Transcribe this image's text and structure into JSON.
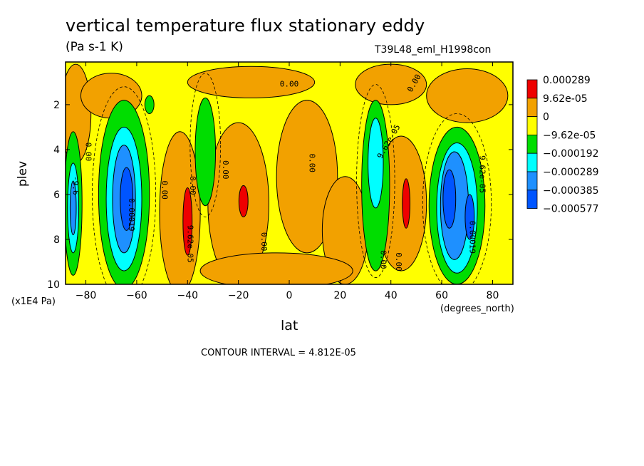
{
  "chart_data": {
    "type": "heatmap",
    "title": "vertical temperature flux stationary eddy",
    "units": "(Pa s-1 K)",
    "run_label": "T39L48_eml_H1998con",
    "xlabel": "lat",
    "x_unit": "(degrees_north)",
    "ylabel": "plev",
    "y_unit": "(x1E4 Pa)",
    "footnote": "CONTOUR INTERVAL = 4.812E-05",
    "xlim": [
      -88,
      88
    ],
    "ylim": [
      10,
      0.1
    ],
    "x_ticks": [
      -80,
      -60,
      -40,
      -20,
      0,
      20,
      40,
      60,
      80
    ],
    "y_ticks": [
      2,
      4,
      6,
      8,
      10
    ],
    "legend": [
      {
        "label": "0.000289",
        "color": "#ee0000"
      },
      {
        "label": "9.62e-05",
        "color": "#f2a100"
      },
      {
        "label": "0",
        "color": "#ffff00"
      },
      {
        "label": "−9.62e-05",
        "color": "#00dd00"
      },
      {
        "label": "−0.000192",
        "color": "#00ffff"
      },
      {
        "label": "−0.000289",
        "color": "#1e90ff"
      },
      {
        "label": "−0.000385",
        "color": "#0055ff"
      },
      {
        "label": "−0.000577",
        "color": ""
      }
    ],
    "contour_labels": [
      {
        "text": "0.00",
        "lat": -80,
        "plev": 4.1,
        "rot": 90
      },
      {
        "text": "0.00",
        "lat": -50,
        "plev": 5.8,
        "rot": 90
      },
      {
        "text": "0.00",
        "lat": -39,
        "plev": 5.6,
        "rot": 90
      },
      {
        "text": "0.00",
        "lat": -26,
        "plev": 4.9,
        "rot": 90
      },
      {
        "text": "0.00",
        "lat": 8,
        "plev": 4.6,
        "rot": 90
      },
      {
        "text": "0.00",
        "lat": -11,
        "plev": 8.1,
        "rot": 90
      },
      {
        "text": "0.00",
        "lat": 0,
        "plev": 1.2,
        "rot": 0
      },
      {
        "text": "0.00",
        "lat": 50,
        "plev": 1.1,
        "rot": -60
      },
      {
        "text": "0.00",
        "lat": 36,
        "plev": 8.9,
        "rot": 90
      },
      {
        "text": "0.00",
        "lat": 42,
        "plev": 9.0,
        "rot": 90
      },
      {
        "text": "9.62e-05",
        "lat": -40,
        "plev": 8.2,
        "rot": 90
      },
      {
        "text": "9.62e-05",
        "lat": 40,
        "plev": 3.7,
        "rot": -60
      },
      {
        "text": "9.62e-05",
        "lat": 75,
        "plev": 5.1,
        "rot": 90
      },
      {
        "text": "0.00019",
        "lat": 71,
        "plev": 7.9,
        "rot": 90
      },
      {
        "text": "0.00019",
        "lat": -63,
        "plev": 6.9,
        "rot": 90
      },
      {
        "text": "-9.6",
        "lat": -85,
        "plev": 5.6,
        "rot": 90
      }
    ]
  }
}
